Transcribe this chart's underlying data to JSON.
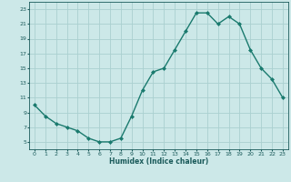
{
  "x": [
    0,
    1,
    2,
    3,
    4,
    5,
    6,
    7,
    8,
    9,
    10,
    11,
    12,
    13,
    14,
    15,
    16,
    17,
    18,
    19,
    20,
    21,
    22,
    23
  ],
  "y": [
    10.0,
    8.5,
    7.5,
    7.0,
    6.5,
    5.5,
    5.0,
    5.0,
    5.5,
    8.5,
    12.0,
    14.5,
    15.0,
    17.5,
    20.0,
    22.5,
    22.5,
    21.0,
    22.0,
    21.0,
    17.5,
    15.0,
    13.5,
    11.0
  ],
  "line_color": "#1a7a6e",
  "marker_color": "#1a7a6e",
  "bg_color": "#cce8e8",
  "grid_color": "#aad0d0",
  "xlabel": "Humidex (Indice chaleur)",
  "xlim": [
    -0.5,
    23.5
  ],
  "ylim": [
    4,
    24
  ],
  "yticks": [
    5,
    7,
    9,
    11,
    13,
    15,
    17,
    19,
    21,
    23
  ],
  "xticks": [
    0,
    1,
    2,
    3,
    4,
    5,
    6,
    7,
    8,
    9,
    10,
    11,
    12,
    13,
    14,
    15,
    16,
    17,
    18,
    19,
    20,
    21,
    22,
    23
  ]
}
